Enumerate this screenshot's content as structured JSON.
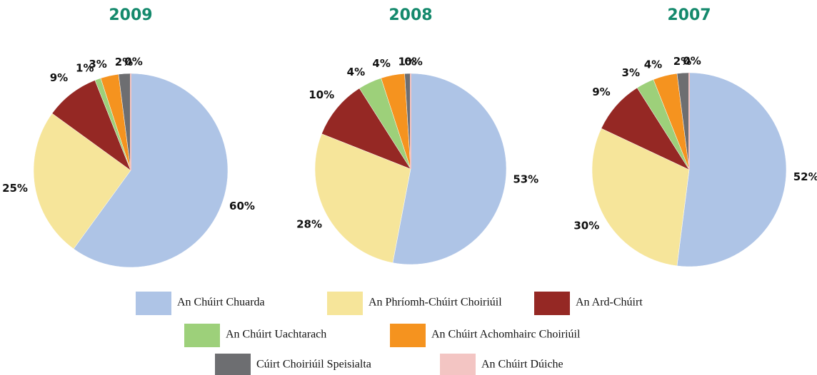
{
  "legend": {
    "categories": [
      "An Chúirt Chuarda",
      "An Phríomh-Chúirt Choiriúil",
      "An Ard-Chúirt",
      "An Chúirt Uachtarach",
      "An Chúirt Achomhairc Choiriúil",
      "Cúirt Choiriúil Speisialta",
      "An Chúirt Dúiche"
    ],
    "colors": [
      "#aec4e6",
      "#f6e59a",
      "#952824",
      "#9dd07a",
      "#f5931f",
      "#6d6e71",
      "#f3c5c3"
    ]
  },
  "chart_data": [
    {
      "type": "pie",
      "title": "2009",
      "values": [
        60,
        25,
        9,
        1,
        3,
        2,
        0
      ],
      "value_labels": [
        "60%",
        "25%",
        "9%",
        "1%",
        "3%",
        "2%",
        "0%"
      ]
    },
    {
      "type": "pie",
      "title": "2008",
      "values": [
        53,
        28,
        10,
        4,
        4,
        1,
        0
      ],
      "value_labels": [
        "53%",
        "28%",
        "10%",
        "4%",
        "4%",
        "1%",
        "0%"
      ]
    },
    {
      "type": "pie",
      "title": "2007",
      "values": [
        52,
        30,
        9,
        3,
        4,
        2,
        0
      ],
      "value_labels": [
        "52%",
        "30%",
        "9%",
        "3%",
        "4%",
        "2%",
        "0%"
      ]
    }
  ]
}
